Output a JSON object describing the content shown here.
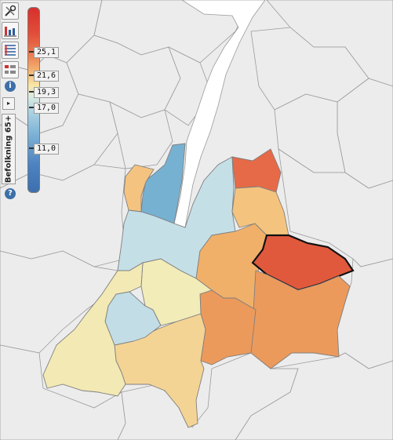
{
  "map": {
    "indicator_label": "Befolkning 65+",
    "selected_region": "east-highlighted",
    "colors": {
      "background": "#ececec",
      "water": "#ffffff",
      "borders": "#7f7f7f"
    }
  },
  "legend": {
    "min": 11.0,
    "max": 25.1,
    "ticks": [
      "25,1",
      "21,6",
      "19,3",
      "17,0",
      "11,0"
    ]
  },
  "toolbar": {
    "tools": [
      "tools-icon",
      "bar-chart-icon",
      "table-icon",
      "list-view-icon"
    ],
    "info_label": "i",
    "help_label": "?",
    "expand_label": "▸"
  }
}
